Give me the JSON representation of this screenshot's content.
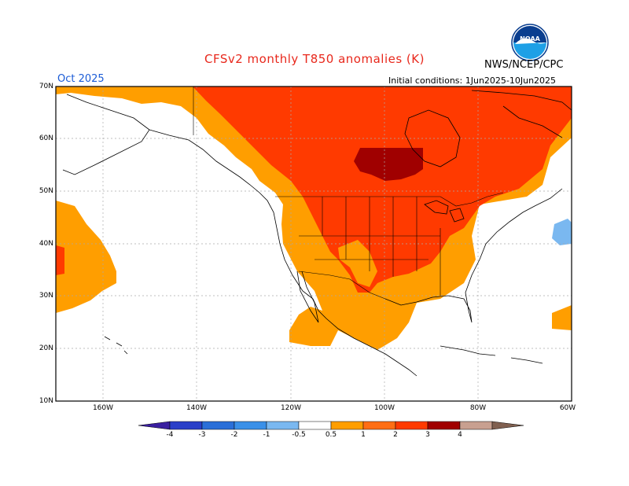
{
  "header": {
    "title": "CFSv2 monthly T850 anomalies (K)",
    "agency": "NWS/NCEP/CPC",
    "valid_month": "Oct 2025",
    "initial_conditions": "Initial conditions: 1Jun2025-10Jun2025",
    "logo_text": "NOAA"
  },
  "axes": {
    "lat_labels": [
      "70N",
      "60N",
      "50N",
      "40N",
      "30N",
      "20N",
      "10N"
    ],
    "lon_labels": [
      "160W",
      "140W",
      "120W",
      "100W",
      "80W",
      "60W"
    ]
  },
  "colorbar": {
    "ticks": [
      "-4",
      "-3",
      "-2",
      "-1",
      "-0.5",
      "0.5",
      "1",
      "2",
      "3",
      "4"
    ],
    "colors": [
      "#3a1fa0",
      "#2a3fc8",
      "#2a6fd8",
      "#3a90e8",
      "#7ab8f0",
      "#ffffff",
      "#ff9e00",
      "#ff6e14",
      "#ff3a00",
      "#a00000",
      "#c8a090",
      "#806050"
    ]
  },
  "map": {
    "extent": {
      "lon_min": -170,
      "lon_max": -60,
      "lat_min": 10,
      "lat_max": 70
    },
    "anomaly_colors": {
      "c05": "#ff9e00",
      "c1": "#ff6e14",
      "c2": "#ff3a00",
      "c3": "#a00000",
      "neg": "#7ab8f0"
    }
  }
}
